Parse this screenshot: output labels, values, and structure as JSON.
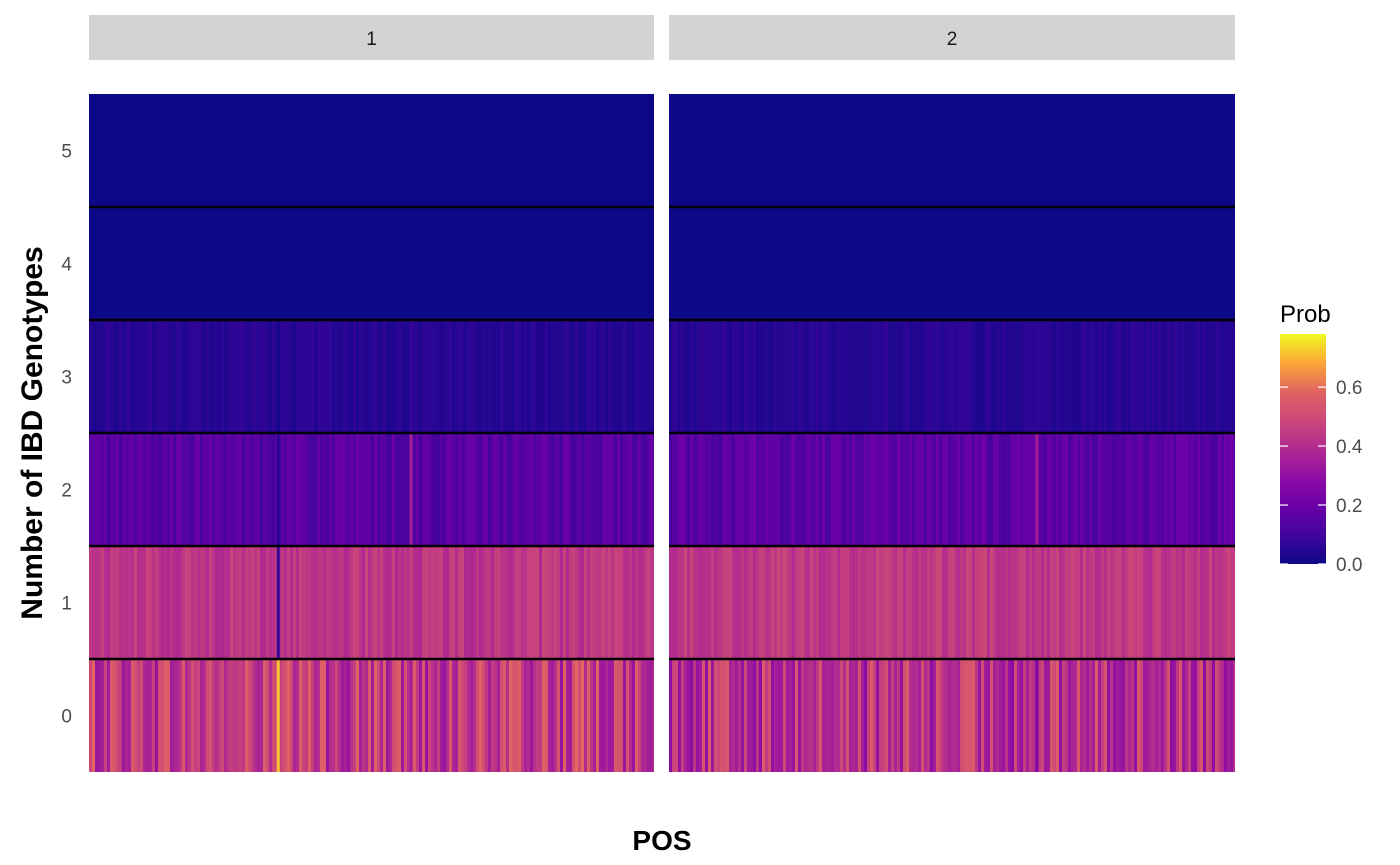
{
  "chart_data": {
    "type": "heatmap",
    "title": "",
    "xlabel": "POS",
    "ylabel": "Number of IBD Genotypes",
    "facets": [
      "1",
      "2"
    ],
    "y_categories": [
      "0",
      "1",
      "2",
      "3",
      "4",
      "5"
    ],
    "legend": {
      "title": "Prob",
      "placement": "right",
      "ticks": [
        "0.0",
        "0.2",
        "0.4",
        "0.6"
      ],
      "range": [
        0.0,
        0.78
      ],
      "colormap": "plasma"
    },
    "panels": [
      {
        "facet": "1",
        "row_mean_prob": {
          "0": 0.45,
          "1": 0.43,
          "2": 0.15,
          "3": 0.05,
          "4": 0.0,
          "5": 0.0
        },
        "notable_columns": [
          {
            "position_fraction": 0.335,
            "row_probs": {
              "0": 0.72,
              "1": 0.08,
              "2": 0.05,
              "3": 0.01
            }
          },
          {
            "position_fraction": 0.57,
            "row_probs": {
              "0": 0.35,
              "1": 0.46,
              "2": 0.35,
              "3": 0.08
            }
          }
        ]
      },
      {
        "facet": "2",
        "row_mean_prob": {
          "0": 0.42,
          "1": 0.44,
          "2": 0.16,
          "3": 0.05,
          "4": 0.0,
          "5": 0.0
        },
        "notable_columns": [
          {
            "position_fraction": 0.65,
            "row_probs": {
              "0": 0.25,
              "1": 0.44,
              "2": 0.35,
              "3": 0.07
            }
          }
        ]
      }
    ],
    "grid": false,
    "x_ticks_shown": false
  }
}
